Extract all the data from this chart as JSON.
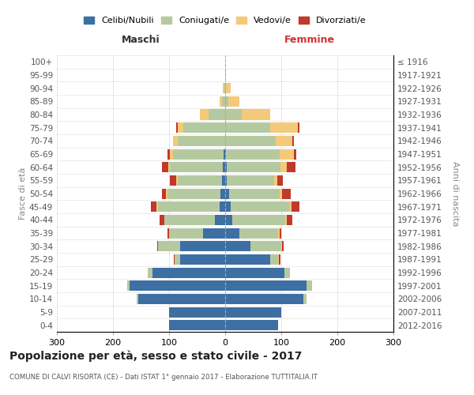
{
  "age_groups": [
    "0-4",
    "5-9",
    "10-14",
    "15-19",
    "20-24",
    "25-29",
    "30-34",
    "35-39",
    "40-44",
    "45-49",
    "50-54",
    "55-59",
    "60-64",
    "65-69",
    "70-74",
    "75-79",
    "80-84",
    "85-89",
    "90-94",
    "95-99",
    "100+"
  ],
  "birth_years": [
    "2012-2016",
    "2007-2011",
    "2002-2006",
    "1997-2001",
    "1992-1996",
    "1987-1991",
    "1982-1986",
    "1977-1981",
    "1972-1976",
    "1967-1971",
    "1962-1966",
    "1957-1961",
    "1952-1956",
    "1947-1951",
    "1942-1946",
    "1937-1941",
    "1932-1936",
    "1927-1931",
    "1922-1926",
    "1917-1921",
    "≤ 1916"
  ],
  "maschi": {
    "celibi": [
      100,
      100,
      155,
      170,
      130,
      80,
      80,
      40,
      18,
      10,
      8,
      5,
      4,
      3,
      0,
      0,
      0,
      0,
      0,
      0,
      0
    ],
    "coniugati": [
      0,
      0,
      3,
      5,
      8,
      10,
      40,
      60,
      90,
      110,
      95,
      80,
      95,
      90,
      85,
      75,
      30,
      6,
      2,
      0,
      0
    ],
    "vedovi": [
      0,
      0,
      0,
      0,
      0,
      0,
      0,
      0,
      1,
      2,
      2,
      2,
      3,
      5,
      8,
      10,
      15,
      4,
      2,
      0,
      0
    ],
    "divorziati": [
      0,
      0,
      0,
      0,
      0,
      1,
      1,
      3,
      8,
      10,
      8,
      12,
      10,
      5,
      0,
      3,
      0,
      0,
      0,
      0,
      0
    ]
  },
  "femmine": {
    "nubili": [
      95,
      100,
      140,
      145,
      105,
      80,
      45,
      25,
      12,
      10,
      7,
      3,
      3,
      2,
      0,
      0,
      0,
      0,
      0,
      0,
      0
    ],
    "coniugate": [
      0,
      0,
      5,
      10,
      10,
      15,
      55,
      70,
      95,
      105,
      90,
      85,
      95,
      95,
      90,
      80,
      30,
      5,
      2,
      0,
      0
    ],
    "vedove": [
      0,
      0,
      0,
      0,
      0,
      1,
      1,
      2,
      3,
      3,
      5,
      5,
      12,
      25,
      30,
      50,
      50,
      20,
      8,
      2,
      0
    ],
    "divorziate": [
      0,
      0,
      0,
      0,
      0,
      2,
      3,
      3,
      10,
      15,
      15,
      10,
      15,
      5,
      3,
      2,
      0,
      0,
      0,
      0,
      0
    ]
  },
  "colors": {
    "celibi": "#3d6fa3",
    "coniugati": "#b5c9a0",
    "vedovi": "#f5c97a",
    "divorziati": "#c0392b"
  },
  "xlim": 300,
  "title": "Popolazione per età, sesso e stato civile - 2017",
  "subtitle": "COMUNE DI CALVI RISORTA (CE) - Dati ISTAT 1° gennaio 2017 - Elaborazione TUTTITALIA.IT",
  "ylabel_left": "Fasce di età",
  "ylabel_right": "Anni di nascita",
  "xlabel_left": "Maschi",
  "xlabel_right": "Femmine"
}
